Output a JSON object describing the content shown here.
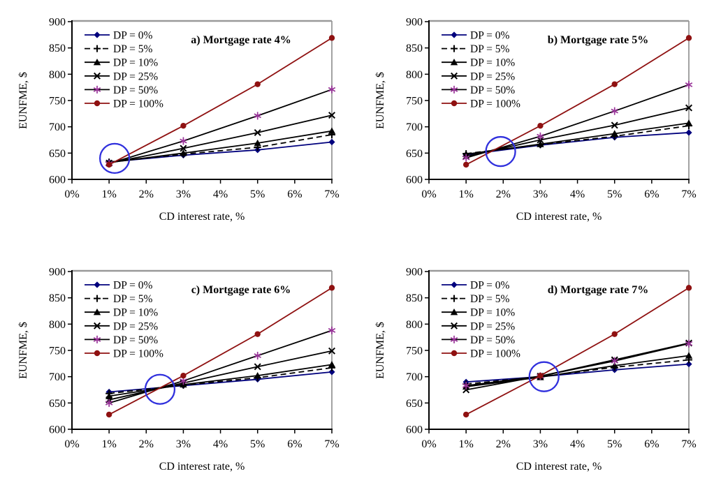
{
  "figure": {
    "background": "#ffffff",
    "annotation_circle_color": "#3030dd",
    "plot_border_color": "#999999",
    "axis_color": "#000000"
  },
  "series_styles": [
    {
      "name": "DP = 0%",
      "line_color": "#00007d",
      "dash": "",
      "marker": "diamond",
      "marker_color": "#00007d"
    },
    {
      "name": "DP = 5%",
      "line_color": "#000000",
      "dash": "8 5",
      "marker": "plus",
      "marker_color": "#000000"
    },
    {
      "name": "DP = 10%",
      "line_color": "#000000",
      "dash": "",
      "marker": "triangle",
      "marker_color": "#000000"
    },
    {
      "name": "DP = 25%",
      "line_color": "#000000",
      "dash": "",
      "marker": "x",
      "marker_color": "#000000"
    },
    {
      "name": "DP = 50%",
      "line_color": "#000000",
      "dash": "",
      "marker": "star",
      "marker_color": "#993399"
    },
    {
      "name": "DP = 100%",
      "line_color": "#8f1111",
      "dash": "",
      "marker": "dot",
      "marker_color": "#8f1111"
    }
  ],
  "chart_data": [
    {
      "id": "a",
      "type": "line",
      "title": "a) Mortgage rate 4%",
      "xlabel": "CD interest rate, %",
      "ylabel": "EUNFME, $",
      "xlim": [
        0,
        7
      ],
      "ylim": [
        600,
        900
      ],
      "x_tick_labels": [
        "0%",
        "1%",
        "2%",
        "3%",
        "4%",
        "5%",
        "6%",
        "7%"
      ],
      "y_ticks": [
        600,
        650,
        700,
        750,
        800,
        850,
        900
      ],
      "x": [
        1,
        3,
        5,
        7
      ],
      "series": [
        {
          "name": "DP = 0%",
          "values": [
            633,
            646,
            656,
            671
          ]
        },
        {
          "name": "DP = 5%",
          "values": [
            633,
            648,
            661,
            685
          ]
        },
        {
          "name": "DP = 10%",
          "values": [
            632,
            650,
            669,
            692
          ]
        },
        {
          "name": "DP = 25%",
          "values": [
            631,
            659,
            689,
            722
          ]
        },
        {
          "name": "DP = 50%",
          "values": [
            630,
            673,
            721,
            771
          ]
        },
        {
          "name": "DP = 100%",
          "values": [
            628,
            702,
            781,
            869
          ]
        }
      ],
      "annotation_circle": {
        "x": 1.15,
        "y": 640
      }
    },
    {
      "id": "b",
      "type": "line",
      "title": "b) Mortgage rate 5%",
      "xlabel": "CD interest rate, %",
      "ylabel": "EUNFME, $",
      "xlim": [
        0,
        7
      ],
      "ylim": [
        600,
        900
      ],
      "x_tick_labels": [
        "0%",
        "1%",
        "2%",
        "3%",
        "4%",
        "5%",
        "6%",
        "7%"
      ],
      "y_ticks": [
        600,
        650,
        700,
        750,
        800,
        850,
        900
      ],
      "x": [
        1,
        3,
        5,
        7
      ],
      "series": [
        {
          "name": "DP = 0%",
          "values": [
            647,
            665,
            680,
            689
          ]
        },
        {
          "name": "DP = 5%",
          "values": [
            649,
            666,
            682,
            702
          ]
        },
        {
          "name": "DP = 10%",
          "values": [
            648,
            667,
            687,
            707
          ]
        },
        {
          "name": "DP = 25%",
          "values": [
            644,
            675,
            703,
            736
          ]
        },
        {
          "name": "DP = 50%",
          "values": [
            641,
            682,
            730,
            780
          ]
        },
        {
          "name": "DP = 100%",
          "values": [
            628,
            702,
            781,
            869
          ]
        }
      ],
      "annotation_circle": {
        "x": 1.93,
        "y": 653
      }
    },
    {
      "id": "c",
      "type": "line",
      "title": "c) Mortgage rate 6%",
      "xlabel": "CD interest rate, %",
      "ylabel": "EUNFME, $",
      "xlim": [
        0,
        7
      ],
      "ylim": [
        600,
        900
      ],
      "x_tick_labels": [
        "0%",
        "1%",
        "2%",
        "3%",
        "4%",
        "5%",
        "6%",
        "7%"
      ],
      "y_ticks": [
        600,
        650,
        700,
        750,
        800,
        850,
        900
      ],
      "x": [
        1,
        3,
        5,
        7
      ],
      "series": [
        {
          "name": "DP = 0%",
          "values": [
            671,
            683,
            695,
            709
          ]
        },
        {
          "name": "DP = 5%",
          "values": [
            668,
            684,
            698,
            717
          ]
        },
        {
          "name": "DP = 10%",
          "values": [
            663,
            685,
            702,
            723
          ]
        },
        {
          "name": "DP = 25%",
          "values": [
            656,
            688,
            719,
            749
          ]
        },
        {
          "name": "DP = 50%",
          "values": [
            650,
            692,
            740,
            788
          ]
        },
        {
          "name": "DP = 100%",
          "values": [
            628,
            702,
            781,
            869
          ]
        }
      ],
      "annotation_circle": {
        "x": 2.37,
        "y": 676
      }
    },
    {
      "id": "d",
      "type": "line",
      "title": "d) Mortgage rate 7%",
      "xlabel": "CD interest rate, %",
      "ylabel": "EUNFME, $",
      "xlim": [
        0,
        7
      ],
      "ylim": [
        600,
        900
      ],
      "x_tick_labels": [
        "0%",
        "1%",
        "2%",
        "3%",
        "4%",
        "5%",
        "6%",
        "7%"
      ],
      "y_ticks": [
        600,
        650,
        700,
        750,
        800,
        850,
        900
      ],
      "x": [
        1,
        3,
        5,
        7
      ],
      "series": [
        {
          "name": "DP = 0%",
          "values": [
            690,
            700,
            713,
            724
          ]
        },
        {
          "name": "DP = 5%",
          "values": [
            686,
            700,
            718,
            732
          ]
        },
        {
          "name": "DP = 10%",
          "values": [
            681,
            699,
            721,
            740
          ]
        },
        {
          "name": "DP = 25%",
          "values": [
            675,
            701,
            732,
            764
          ]
        },
        {
          "name": "DP = 50%",
          "values": [
            683,
            701,
            730,
            763
          ]
        },
        {
          "name": "DP = 100%",
          "values": [
            628,
            702,
            781,
            869
          ]
        }
      ],
      "annotation_circle": {
        "x": 3.1,
        "y": 700
      }
    }
  ]
}
